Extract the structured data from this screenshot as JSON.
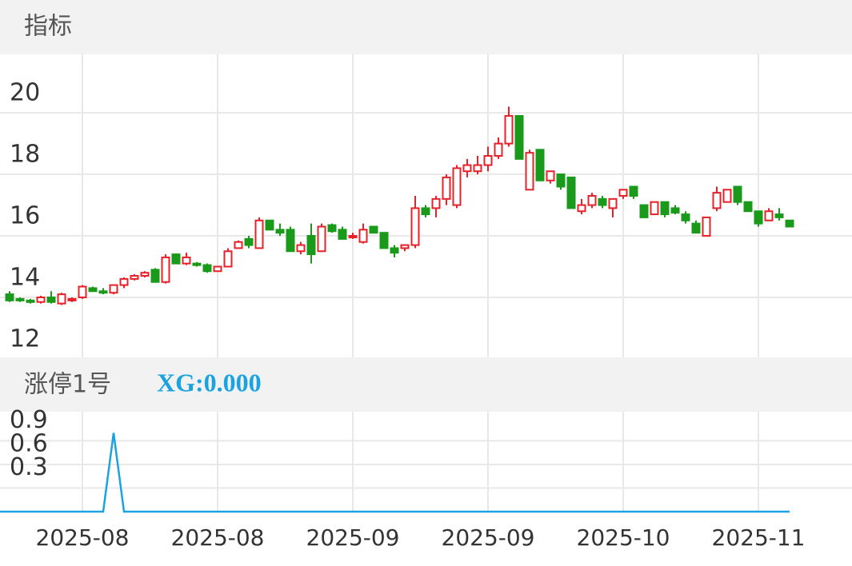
{
  "chart_data": [
    {
      "type": "candlestick",
      "title": "指标",
      "open": [
        14.1,
        13.95,
        13.9,
        13.85,
        14.0,
        13.8,
        13.9,
        14.0,
        14.3,
        14.2,
        14.15,
        14.4,
        14.6,
        14.7,
        14.9,
        14.5,
        15.4,
        15.1,
        15.1,
        15.05,
        14.85,
        15.0,
        15.6,
        15.9,
        15.6,
        16.5,
        16.2,
        16.2,
        15.5,
        16.0,
        15.5,
        16.35,
        16.2,
        15.95,
        15.8,
        16.3,
        16.1,
        15.6,
        15.6,
        15.7,
        16.9,
        16.9,
        17.2,
        17.0,
        18.1,
        18.1,
        18.3,
        18.6,
        19.0,
        19.9,
        17.5,
        18.8,
        17.8,
        18.0,
        17.9,
        16.8,
        17.0,
        17.2,
        16.9,
        17.3,
        17.6,
        17.0,
        16.7,
        17.1,
        16.9,
        16.7,
        16.4,
        16.0,
        16.9,
        17.1,
        17.6,
        17.1,
        16.8,
        16.5,
        16.7,
        16.5
      ],
      "high": [
        14.2,
        14.0,
        13.95,
        14.05,
        14.2,
        14.15,
        14.0,
        14.4,
        14.35,
        14.3,
        14.4,
        14.65,
        14.75,
        14.85,
        14.95,
        15.4,
        15.4,
        15.45,
        15.15,
        15.1,
        15.0,
        15.6,
        15.85,
        16.0,
        16.6,
        16.5,
        16.4,
        16.3,
        15.8,
        16.4,
        16.4,
        16.4,
        16.3,
        16.1,
        16.4,
        16.3,
        16.1,
        15.7,
        15.7,
        17.3,
        17.0,
        17.3,
        18.0,
        18.3,
        18.5,
        18.6,
        18.9,
        19.2,
        20.2,
        19.9,
        18.8,
        18.8,
        18.1,
        18.0,
        17.9,
        17.2,
        17.4,
        17.3,
        17.2,
        17.5,
        17.6,
        17.0,
        17.1,
        17.1,
        17.0,
        16.8,
        16.5,
        16.6,
        17.6,
        17.5,
        17.6,
        17.1,
        16.8,
        16.9,
        16.9,
        16.5
      ],
      "low": [
        13.85,
        13.85,
        13.8,
        13.8,
        13.8,
        13.75,
        13.85,
        13.95,
        14.2,
        14.1,
        14.1,
        14.3,
        14.55,
        14.65,
        14.5,
        14.45,
        15.1,
        15.05,
        15.0,
        14.8,
        14.85,
        15.0,
        15.6,
        15.6,
        15.6,
        16.2,
        16.0,
        15.5,
        15.4,
        15.1,
        15.5,
        16.1,
        15.9,
        15.9,
        15.75,
        16.1,
        15.6,
        15.3,
        15.5,
        15.6,
        16.6,
        16.6,
        17.0,
        16.9,
        17.9,
        18.0,
        18.1,
        18.5,
        18.9,
        18.5,
        17.5,
        17.8,
        17.7,
        17.5,
        16.9,
        16.7,
        16.9,
        16.9,
        16.6,
        17.2,
        17.2,
        16.6,
        16.7,
        16.6,
        16.7,
        16.4,
        16.1,
        16.0,
        16.8,
        17.1,
        17.0,
        16.8,
        16.3,
        16.5,
        16.5,
        16.3
      ],
      "close": [
        13.9,
        13.9,
        13.85,
        14.0,
        13.85,
        14.1,
        13.95,
        14.35,
        14.2,
        14.15,
        14.4,
        14.6,
        14.7,
        14.8,
        14.5,
        15.3,
        15.1,
        15.3,
        15.05,
        14.85,
        15.0,
        15.5,
        15.8,
        15.7,
        16.5,
        16.2,
        16.1,
        15.5,
        15.7,
        15.4,
        16.3,
        16.15,
        15.9,
        16.0,
        16.2,
        16.1,
        15.6,
        15.45,
        15.7,
        16.9,
        16.7,
        17.2,
        17.9,
        18.2,
        18.3,
        18.3,
        18.6,
        19.0,
        19.9,
        18.5,
        18.7,
        17.8,
        18.1,
        17.6,
        16.9,
        17.0,
        17.3,
        17.0,
        17.2,
        17.5,
        17.3,
        16.6,
        17.1,
        16.7,
        16.75,
        16.5,
        16.1,
        16.6,
        17.4,
        17.5,
        17.1,
        16.8,
        16.4,
        16.8,
        16.6,
        16.3
      ],
      "up_color": "#e8202a",
      "down_color": "#1a9a1a",
      "ylim": [
        12.05,
        21.9
      ],
      "yticks": [
        12,
        14,
        16,
        18,
        20
      ],
      "xticks": [
        {
          "value": 7,
          "label": "2025-08"
        },
        {
          "value": 20,
          "label": "2025-08"
        },
        {
          "value": 33,
          "label": "2025-09"
        },
        {
          "value": 46,
          "label": "2025-09"
        },
        {
          "value": 59,
          "label": "2025-10"
        },
        {
          "value": 72,
          "label": "2025-11"
        }
      ],
      "grid": true
    },
    {
      "type": "line",
      "title": "涨停1号",
      "annotation": "XG:0.000",
      "color": "#1aa3e0",
      "values": [
        0,
        0,
        0,
        0,
        0,
        0,
        0,
        0,
        0,
        0,
        1,
        0,
        0,
        0,
        0,
        0,
        0,
        0,
        0,
        0,
        0,
        0,
        0,
        0,
        0,
        0,
        0,
        0,
        0,
        0,
        0,
        0,
        0,
        0,
        0,
        0,
        0,
        0,
        0,
        0,
        0,
        0,
        0,
        0,
        0,
        0,
        0,
        0,
        0,
        0,
        0,
        0,
        0,
        0,
        0,
        0,
        0,
        0,
        0,
        0,
        0,
        0,
        0,
        0,
        0,
        0,
        0,
        0,
        0,
        0,
        0,
        0,
        0,
        0,
        0,
        0
      ],
      "ylim": [
        0,
        1.27
      ],
      "yticks": [
        0.3,
        0.6,
        0.9
      ],
      "grid": true
    }
  ]
}
